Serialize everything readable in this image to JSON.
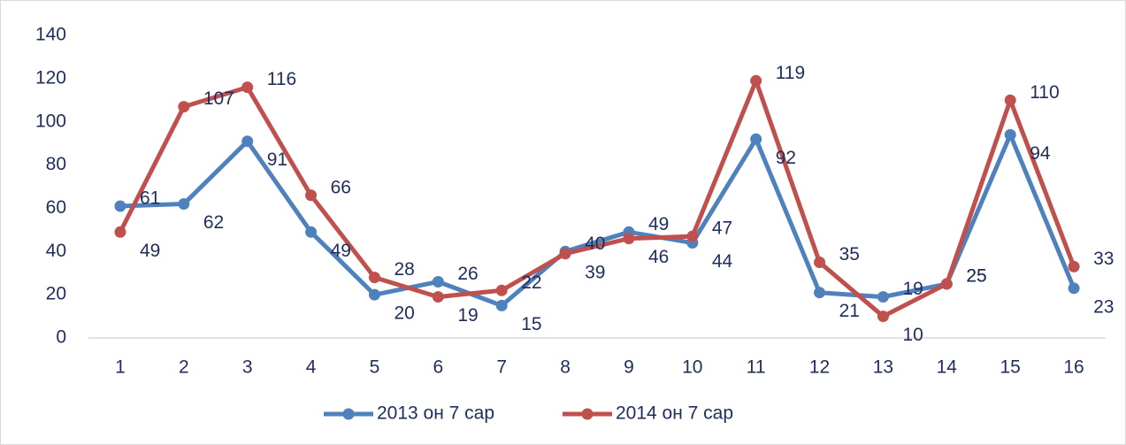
{
  "chart_data": {
    "type": "line",
    "categories": [
      "1",
      "2",
      "3",
      "4",
      "5",
      "6",
      "7",
      "8",
      "9",
      "10",
      "11",
      "12",
      "13",
      "14",
      "15",
      "16"
    ],
    "series": [
      {
        "name": "2013 он 7 сар",
        "color": "#4f81bd",
        "values": [
          61,
          62,
          91,
          49,
          20,
          26,
          15,
          40,
          49,
          44,
          92,
          21,
          19,
          25,
          94,
          23
        ]
      },
      {
        "name": "2014 он 7 сар",
        "color": "#c0504d",
        "values": [
          49,
          107,
          116,
          66,
          28,
          19,
          22,
          39,
          46,
          47,
          119,
          35,
          10,
          25,
          110,
          33
        ]
      }
    ],
    "ylim": [
      0,
      140
    ],
    "yticks": [
      0,
      20,
      40,
      60,
      80,
      100,
      120,
      140
    ],
    "legend": "bottom",
    "data_labels": true
  }
}
